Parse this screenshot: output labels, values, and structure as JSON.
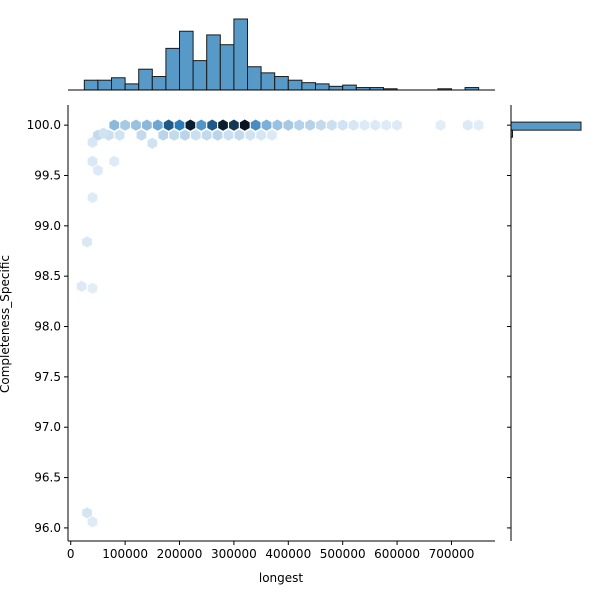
{
  "chart_data": [
    {
      "type": "hexbin",
      "xlabel": "longest",
      "ylabel": "Completeness_Specific",
      "xlim": [
        -5000,
        780000
      ],
      "ylim": [
        95.87,
        100.2
      ],
      "xticks": [
        0,
        100000,
        200000,
        300000,
        400000,
        500000,
        600000,
        700000
      ],
      "yticks": [
        96.0,
        96.5,
        97.0,
        97.5,
        98.0,
        98.5,
        99.0,
        99.5,
        100.0
      ],
      "ytick_labels": [
        "96.0",
        "96.5",
        "97.0",
        "97.5",
        "98.0",
        "98.5",
        "99.0",
        "99.5",
        "100.0"
      ],
      "color": "#1f77b4",
      "cells": [
        {
          "x": 80000,
          "y": 100.0,
          "d": 0.35
        },
        {
          "x": 100000,
          "y": 100.0,
          "d": 0.25
        },
        {
          "x": 120000,
          "y": 100.0,
          "d": 0.3
        },
        {
          "x": 140000,
          "y": 100.0,
          "d": 0.35
        },
        {
          "x": 160000,
          "y": 100.0,
          "d": 0.45
        },
        {
          "x": 180000,
          "y": 100.0,
          "d": 0.8
        },
        {
          "x": 200000,
          "y": 100.0,
          "d": 0.7
        },
        {
          "x": 220000,
          "y": 100.0,
          "d": 0.97
        },
        {
          "x": 240000,
          "y": 100.0,
          "d": 0.55
        },
        {
          "x": 260000,
          "y": 100.0,
          "d": 0.8
        },
        {
          "x": 280000,
          "y": 100.0,
          "d": 0.97
        },
        {
          "x": 300000,
          "y": 100.0,
          "d": 0.9
        },
        {
          "x": 320000,
          "y": 100.0,
          "d": 1.0
        },
        {
          "x": 340000,
          "y": 100.0,
          "d": 0.6
        },
        {
          "x": 360000,
          "y": 100.0,
          "d": 0.4
        },
        {
          "x": 380000,
          "y": 100.0,
          "d": 0.3
        },
        {
          "x": 400000,
          "y": 100.0,
          "d": 0.25
        },
        {
          "x": 420000,
          "y": 100.0,
          "d": 0.2
        },
        {
          "x": 440000,
          "y": 100.0,
          "d": 0.2
        },
        {
          "x": 460000,
          "y": 100.0,
          "d": 0.15
        },
        {
          "x": 480000,
          "y": 100.0,
          "d": 0.12
        },
        {
          "x": 500000,
          "y": 100.0,
          "d": 0.1
        },
        {
          "x": 520000,
          "y": 100.0,
          "d": 0.08
        },
        {
          "x": 540000,
          "y": 100.0,
          "d": 0.06
        },
        {
          "x": 560000,
          "y": 100.0,
          "d": 0.06
        },
        {
          "x": 580000,
          "y": 100.0,
          "d": 0.05
        },
        {
          "x": 600000,
          "y": 100.0,
          "d": 0.05
        },
        {
          "x": 680000,
          "y": 100.0,
          "d": 0.04
        },
        {
          "x": 730000,
          "y": 100.0,
          "d": 0.06
        },
        {
          "x": 750000,
          "y": 100.0,
          "d": 0.04
        },
        {
          "x": 50000,
          "y": 99.9,
          "d": 0.15
        },
        {
          "x": 70000,
          "y": 99.9,
          "d": 0.12
        },
        {
          "x": 90000,
          "y": 99.9,
          "d": 0.1
        },
        {
          "x": 130000,
          "y": 99.9,
          "d": 0.15
        },
        {
          "x": 170000,
          "y": 99.9,
          "d": 0.18
        },
        {
          "x": 190000,
          "y": 99.9,
          "d": 0.15
        },
        {
          "x": 210000,
          "y": 99.9,
          "d": 0.18
        },
        {
          "x": 230000,
          "y": 99.9,
          "d": 0.12
        },
        {
          "x": 250000,
          "y": 99.9,
          "d": 0.15
        },
        {
          "x": 270000,
          "y": 99.9,
          "d": 0.18
        },
        {
          "x": 290000,
          "y": 99.9,
          "d": 0.12
        },
        {
          "x": 310000,
          "y": 99.9,
          "d": 0.15
        },
        {
          "x": 330000,
          "y": 99.9,
          "d": 0.1
        },
        {
          "x": 350000,
          "y": 99.9,
          "d": 0.08
        },
        {
          "x": 370000,
          "y": 99.9,
          "d": 0.06
        },
        {
          "x": 150000,
          "y": 99.82,
          "d": 0.1
        },
        {
          "x": 60000,
          "y": 99.92,
          "d": 0.1
        },
        {
          "x": 40000,
          "y": 99.83,
          "d": 0.08
        },
        {
          "x": 40000,
          "y": 99.64,
          "d": 0.07
        },
        {
          "x": 80000,
          "y": 99.64,
          "d": 0.05
        },
        {
          "x": 50000,
          "y": 99.55,
          "d": 0.06
        },
        {
          "x": 40000,
          "y": 99.28,
          "d": 0.05
        },
        {
          "x": 30000,
          "y": 98.84,
          "d": 0.07
        },
        {
          "x": 20000,
          "y": 98.4,
          "d": 0.06
        },
        {
          "x": 40000,
          "y": 98.38,
          "d": 0.04
        },
        {
          "x": 30000,
          "y": 96.15,
          "d": 0.09
        },
        {
          "x": 40000,
          "y": 96.06,
          "d": 0.05
        }
      ]
    },
    {
      "type": "bar",
      "orientation": "vertical",
      "bin_start": 25000,
      "bin_width": 25000,
      "values": [
        8,
        8,
        10,
        5,
        17,
        11,
        34,
        48,
        24,
        45,
        37,
        58,
        19,
        14,
        11,
        8,
        6,
        5,
        3,
        4,
        2,
        2,
        1,
        0,
        0,
        0,
        1,
        0,
        2
      ]
    },
    {
      "type": "bar",
      "orientation": "horizontal",
      "bins": [
        {
          "y_from": 99.95,
          "y_to": 100.03,
          "count": 1400
        },
        {
          "y_from": 99.88,
          "y_to": 99.95,
          "count": 20
        }
      ]
    }
  ]
}
